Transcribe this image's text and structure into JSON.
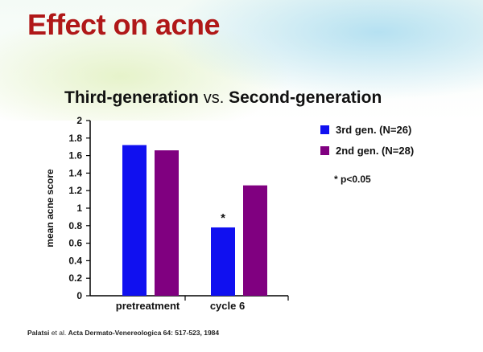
{
  "slide": {
    "title": "Effect on acne",
    "citation": {
      "author": "Palatsi",
      "etal": " et al. ",
      "source": "Acta Dermato-Venereologica 64: 517-523, 1984"
    }
  },
  "chart_data": {
    "type": "bar",
    "title_left": "Third-generation",
    "title_vs": "vs.",
    "title_right": "Second-generation",
    "ylabel": "mean acne score",
    "ylim": [
      0,
      2
    ],
    "yticks": [
      "0",
      "0.2",
      "0.4",
      "0.6",
      "0.8",
      "1",
      "1.2",
      "1.4",
      "1.6",
      "1.8",
      "2"
    ],
    "categories": [
      "pretreatment",
      "cycle 6"
    ],
    "series": [
      {
        "name": "3rd gen. (N=26)",
        "color": "#1010f0",
        "values": [
          1.72,
          0.78
        ]
      },
      {
        "name": "2nd gen. (N=28)",
        "color": "#800080",
        "values": [
          1.66,
          1.26
        ]
      }
    ],
    "bar_annotation": {
      "series": 0,
      "category": 1,
      "text": "*"
    },
    "note": "* p<0.05",
    "legend_position": "right",
    "grid": false
  }
}
